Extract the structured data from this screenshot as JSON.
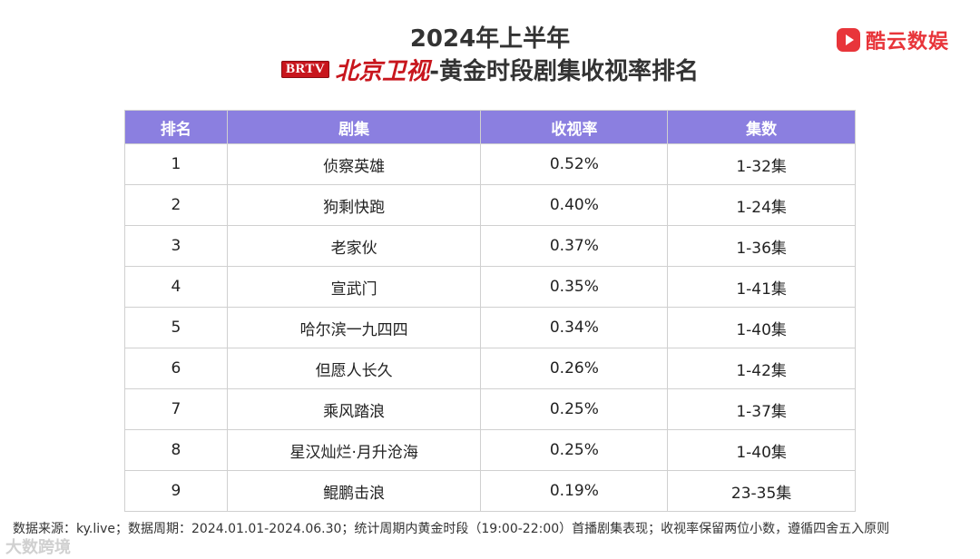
{
  "brand": {
    "logo_text": "酷云数娱",
    "accent": "#e8353a"
  },
  "title": {
    "line1": "2024年上半年",
    "channel_badge": "BRTV",
    "channel_name": "北京卫视",
    "subtitle": "-黄金时段剧集收视率排名"
  },
  "table": {
    "header_color": "#8b7fe0",
    "columns": [
      "排名",
      "剧集",
      "收视率",
      "集数"
    ],
    "rows": [
      [
        "1",
        "侦察英雄",
        "0.52%",
        "1-32集"
      ],
      [
        "2",
        "狗剩快跑",
        "0.40%",
        "1-24集"
      ],
      [
        "3",
        "老家伙",
        "0.37%",
        "1-36集"
      ],
      [
        "4",
        "宣武门",
        "0.35%",
        "1-41集"
      ],
      [
        "5",
        "哈尔滨一九四四",
        "0.34%",
        "1-40集"
      ],
      [
        "6",
        "但愿人长久",
        "0.26%",
        "1-42集"
      ],
      [
        "7",
        "乘风踏浪",
        "0.25%",
        "1-37集"
      ],
      [
        "8",
        "星汉灿烂·月升沧海",
        "0.25%",
        "1-40集"
      ],
      [
        "9",
        "鲲鹏击浪",
        "0.19%",
        "23-35集"
      ]
    ]
  },
  "footer": {
    "note": "数据来源：ky.live；数据周期：2024.01.01-2024.06.30；统计周期内黄金时段（19:00-22:00）首播剧集表现；收视率保留两位小数，遵循四舍五入原则",
    "watermark": "大数跨境"
  }
}
